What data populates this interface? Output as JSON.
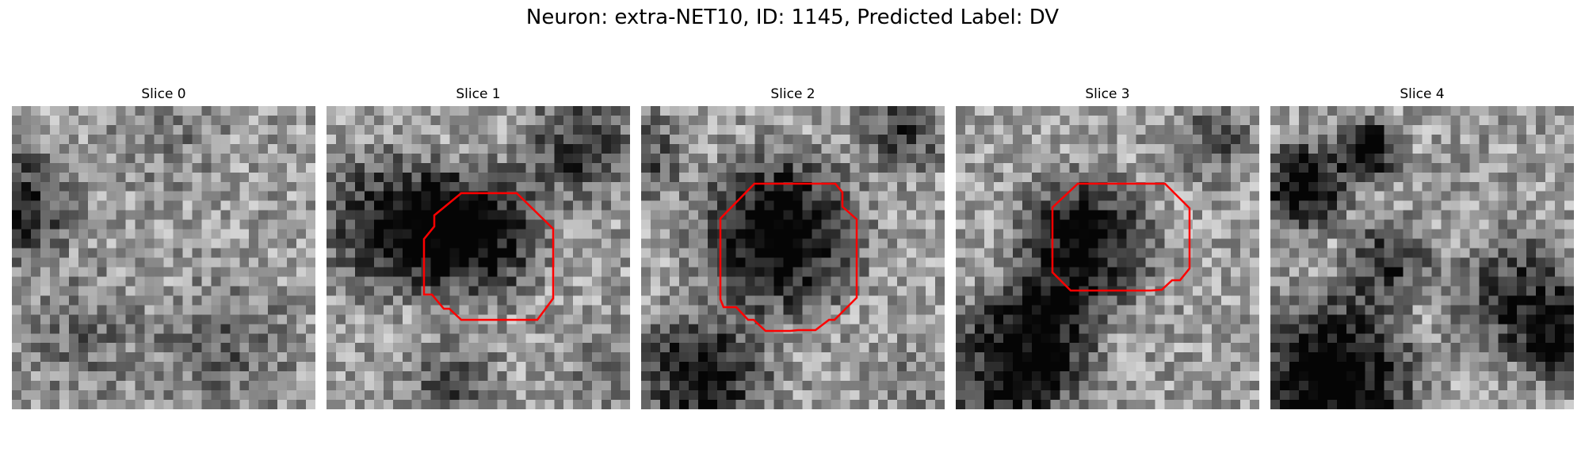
{
  "figure": {
    "title": "Neuron: extra-NET10, ID: 1145, Predicted Label: DV",
    "outline_color": "#ff0000"
  },
  "slices": [
    {
      "title": "Slice 0"
    },
    {
      "title": "Slice 1"
    },
    {
      "title": "Slice 2"
    },
    {
      "title": "Slice 3"
    },
    {
      "title": "Slice 4"
    }
  ]
}
